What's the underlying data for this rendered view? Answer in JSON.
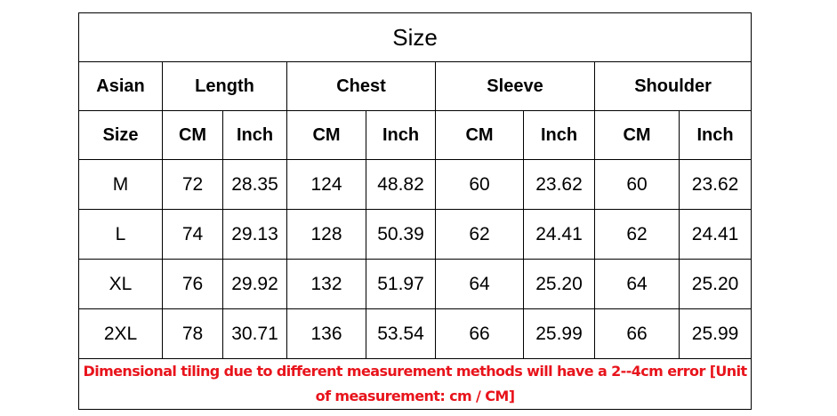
{
  "title": "Size",
  "header_top": [
    "Asian",
    "Length",
    "Chest",
    "Sleeve",
    "Shoulder"
  ],
  "header_sub": [
    "Size",
    "CM",
    "Inch",
    "CM",
    "Inch",
    "CM",
    "Inch",
    "CM",
    "Inch"
  ],
  "rows": [
    [
      "M",
      "72",
      "28.35",
      "124",
      "48.82",
      "60",
      "23.62",
      "60",
      "23.62"
    ],
    [
      "L",
      "74",
      "29.13",
      "128",
      "50.39",
      "62",
      "24.41",
      "62",
      "24.41"
    ],
    [
      "XL",
      "76",
      "29.92",
      "132",
      "51.97",
      "64",
      "25.20",
      "64",
      "25.20"
    ],
    [
      "2XL",
      "78",
      "30.71",
      "136",
      "53.54",
      "66",
      "25.99",
      "66",
      "25.99"
    ]
  ],
  "note": "Dimensional tiling due to different measurement methods will have a 2--4cm error [Unit of measurement: cm / CM]",
  "colors": {
    "note": "#e8141c"
  }
}
